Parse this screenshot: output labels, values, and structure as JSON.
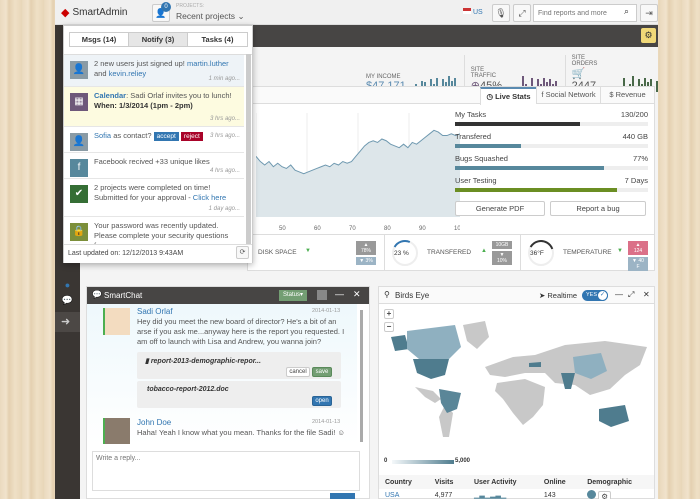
{
  "header": {
    "brand": "SmartAdmin",
    "projects_badge": "0",
    "projects_label": "PROJECTS:",
    "projects_value": "Recent projects",
    "language": "US",
    "search_placeholder": "Find reports and more"
  },
  "stats": [
    {
      "label": "MY INCOME",
      "value": "$47,171",
      "color": "#57889c",
      "bars": [
        3,
        5,
        4,
        7,
        6,
        4,
        8,
        5,
        9,
        4,
        8,
        6,
        10,
        7,
        9
      ]
    },
    {
      "label": "SITE TRAFFIC",
      "value": "45%",
      "color": "#6e587a",
      "bars": [
        2,
        4,
        3,
        10,
        5,
        4,
        9,
        4,
        8,
        5,
        9,
        6,
        8,
        5,
        7
      ]
    },
    {
      "label": "SITE ORDERS",
      "value": "2447",
      "color": "#496949",
      "bars": [
        2,
        3,
        4,
        9,
        4,
        5,
        10,
        4,
        8,
        5,
        9,
        6,
        8,
        4,
        7
      ]
    }
  ],
  "widget_tabs": [
    {
      "label": "Live Stats",
      "active": true
    },
    {
      "label": "Social Network"
    },
    {
      "label": "Revenue"
    }
  ],
  "live_stats": {
    "chart_values": [
      55,
      52,
      50,
      52,
      49,
      51,
      49,
      48,
      50,
      47,
      46,
      45,
      46,
      47,
      48,
      49,
      50,
      49,
      51,
      50,
      52,
      51,
      52,
      55,
      58,
      61,
      63,
      64,
      63,
      65,
      64,
      62,
      61,
      60,
      62,
      60,
      63,
      62,
      64,
      66,
      68,
      70,
      69,
      67,
      67,
      68,
      67,
      68
    ],
    "x_ticks": [
      "50",
      "60",
      "70",
      "80",
      "90",
      "100"
    ],
    "bars": [
      {
        "label": "My Tasks",
        "value": "130/200",
        "pct": 65,
        "color": "#333333"
      },
      {
        "label": "Transfered",
        "value": "440 GB",
        "pct": 34,
        "color": "#57889c"
      },
      {
        "label": "Bugs Squashed",
        "value": "77%",
        "pct": 77,
        "color": "#57889c"
      },
      {
        "label": "User Testing",
        "value": "7 Days",
        "pct": 84,
        "color": "#6b8e23"
      }
    ],
    "generate_pdf": "Generate PDF",
    "report_bug": "Report a bug"
  },
  "gauges": [
    {
      "label": "DISK SPACE",
      "trend": "down",
      "badge1": "▲ 78%",
      "badge2": "▼ 3%",
      "b1color": "#999999",
      "b2color": "#9cb4c5"
    },
    {
      "label": "TRANSFERED",
      "value": "23 %",
      "pct": 23,
      "trend": "up",
      "badge1": "10GB",
      "badge2": "▼ 10%",
      "b1color": "#999999",
      "b2color": "#999999"
    },
    {
      "label": "TEMPERATURE",
      "value": "36°F",
      "pct": 36,
      "trend": "down",
      "badge1": "▲ 124",
      "badge2": "▼ 40 F",
      "b1color": "#db7088",
      "b2color": "#9cb4c5"
    }
  ],
  "notify": {
    "tabs": [
      "Msgs (14)",
      "Notify (3)",
      "Tasks (4)"
    ],
    "items": [
      {
        "icon": "user-icon",
        "pre": "2 new users just signed up! ",
        "link": "martin.luther",
        "mid": " and ",
        "link2": "kevin.reliey",
        "time": "1 min ago..."
      },
      {
        "icon": "calendar-icon",
        "link": "Calendar",
        "pre": ": Sadi Orlaf invites you to lunch!",
        "bold": "When: 1/3/2014 (1pm - 2pm)",
        "time": "3 hrs ago..."
      },
      {
        "icon": "user-icon",
        "link": "Sofia",
        "pre": " as contact?",
        "accept": "accept",
        "reject": "reject",
        "time": "3 hrs ago..."
      },
      {
        "icon": "facebook-icon",
        "pre": "Facebook recived +33 unique likes",
        "time": "4 hrs ago..."
      },
      {
        "icon": "check-icon",
        "pre": "2 projects were completed on time! Submitted for your approval - ",
        "link": "Click here",
        "time": "1 day ago..."
      },
      {
        "icon": "lock-icon",
        "pre": "Your password was recently updated. Please complete your security questions from your"
      }
    ],
    "footer": "Last updated on: 12/12/2013 9:43AM"
  },
  "chat": {
    "title": "SmartChat",
    "status": "Status",
    "messages": [
      {
        "name": "Sadi Orlaf",
        "date": "2014-01-13",
        "text": "Hey did you meet the new board of director? He's a bit of an arse if you ask me...anyway here is the report you requested. I am off to launch with Lisa and Andrew, you wanna join?"
      },
      {
        "name": "John Doe",
        "date": "2014-01-13",
        "text": "Haha! Yeah I know what you mean. Thanks for the file Sadi! ☺"
      }
    ],
    "attachments": [
      {
        "file": "report-2013-demographic-repor...",
        "cancel": "cancel",
        "save": "save"
      },
      {
        "file": "tobacco-report-2012.doc",
        "open": "open"
      }
    ],
    "reply_placeholder": "Write a reply..."
  },
  "map": {
    "title": "Birds Eye",
    "realtime": "Realtime",
    "toggle": "YES",
    "legend_min": "0",
    "legend_max": "5,000",
    "columns": [
      "Country",
      "Visits",
      "User Activity",
      "Online",
      "Demographic"
    ],
    "rows": [
      {
        "country": "USA",
        "visits": "4,977",
        "online": "143"
      }
    ]
  }
}
